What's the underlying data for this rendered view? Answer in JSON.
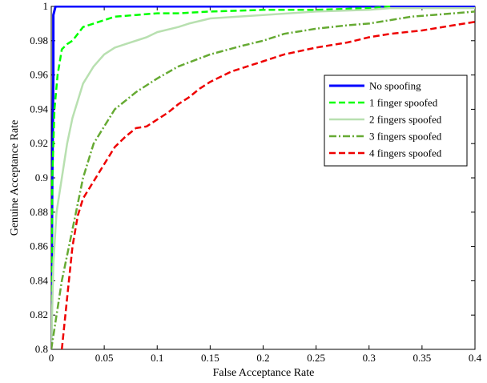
{
  "chart_data": {
    "type": "line",
    "title": "",
    "xlabel": "False Acceptance Rate",
    "ylabel": "Genuine Acceptance Rate",
    "xlim": [
      0,
      0.4
    ],
    "ylim": [
      0.8,
      1.0
    ],
    "xticks": [
      0,
      0.05,
      0.1,
      0.15,
      0.2,
      0.25,
      0.3,
      0.35,
      0.4
    ],
    "xtick_labels": [
      "0",
      "0.05",
      "0.1",
      "0.15",
      "0.2",
      "0.25",
      "0.3",
      "0.35",
      "0.4"
    ],
    "yticks": [
      0.8,
      0.82,
      0.84,
      0.86,
      0.88,
      0.9,
      0.92,
      0.94,
      0.96,
      0.98,
      1.0
    ],
    "ytick_labels": [
      "0.8",
      "0.82",
      "0.84",
      "0.86",
      "0.88",
      "0.9",
      "0.92",
      "0.94",
      "0.96",
      "0.98",
      "1"
    ],
    "grid": false,
    "legend_position": "right",
    "series": [
      {
        "name": "No spoofing",
        "color": "#0000ff",
        "dash": "solid",
        "x": [
          0,
          0.001,
          0.002,
          0.002,
          0.004,
          0.13,
          0.4
        ],
        "y": [
          0.8,
          0.9,
          0.96,
          0.995,
          1.0,
          1.0,
          1.0
        ]
      },
      {
        "name": "1 finger spoofed",
        "color": "#00ff00",
        "dash": "dashed",
        "x": [
          0,
          0.001,
          0.003,
          0.006,
          0.01,
          0.015,
          0.02,
          0.03,
          0.04,
          0.05,
          0.06,
          0.08,
          0.1,
          0.12,
          0.15,
          0.2,
          0.25,
          0.3,
          0.32
        ],
        "y": [
          0.8,
          0.9,
          0.94,
          0.96,
          0.975,
          0.978,
          0.98,
          0.988,
          0.99,
          0.992,
          0.994,
          0.995,
          0.996,
          0.996,
          0.997,
          0.998,
          0.998,
          0.999,
          1.0
        ]
      },
      {
        "name": "2 fingers spoofed",
        "color": "#b8e0b0",
        "dash": "solid",
        "x": [
          0,
          0.002,
          0.005,
          0.01,
          0.015,
          0.02,
          0.03,
          0.04,
          0.05,
          0.06,
          0.07,
          0.09,
          0.1,
          0.12,
          0.13,
          0.15,
          0.2,
          0.25,
          0.3,
          0.32,
          0.4
        ],
        "y": [
          0.8,
          0.85,
          0.88,
          0.9,
          0.92,
          0.935,
          0.955,
          0.965,
          0.972,
          0.976,
          0.978,
          0.982,
          0.985,
          0.988,
          0.99,
          0.993,
          0.995,
          0.997,
          0.998,
          0.999,
          0.999
        ]
      },
      {
        "name": "3 fingers spoofed",
        "color": "#66aa33",
        "dash": "dashdot",
        "x": [
          0,
          0.005,
          0.01,
          0.02,
          0.03,
          0.04,
          0.05,
          0.06,
          0.07,
          0.08,
          0.1,
          0.12,
          0.15,
          0.18,
          0.2,
          0.22,
          0.25,
          0.28,
          0.3,
          0.32,
          0.34,
          0.36,
          0.38,
          0.4
        ],
        "y": [
          0.8,
          0.82,
          0.84,
          0.87,
          0.9,
          0.92,
          0.93,
          0.94,
          0.945,
          0.95,
          0.958,
          0.965,
          0.972,
          0.977,
          0.98,
          0.984,
          0.987,
          0.989,
          0.99,
          0.992,
          0.994,
          0.995,
          0.996,
          0.997
        ]
      },
      {
        "name": "4 fingers spoofed",
        "color": "#ee0000",
        "dash": "dashed",
        "x": [
          0.01,
          0.015,
          0.02,
          0.025,
          0.03,
          0.04,
          0.05,
          0.06,
          0.07,
          0.08,
          0.09,
          0.1,
          0.11,
          0.12,
          0.13,
          0.14,
          0.15,
          0.17,
          0.2,
          0.22,
          0.25,
          0.28,
          0.3,
          0.32,
          0.35,
          0.38,
          0.4
        ],
        "y": [
          0.8,
          0.83,
          0.86,
          0.878,
          0.888,
          0.898,
          0.908,
          0.918,
          0.924,
          0.929,
          0.93,
          0.934,
          0.938,
          0.943,
          0.947,
          0.952,
          0.956,
          0.962,
          0.968,
          0.972,
          0.976,
          0.979,
          0.982,
          0.984,
          0.986,
          0.989,
          0.991
        ]
      }
    ]
  }
}
